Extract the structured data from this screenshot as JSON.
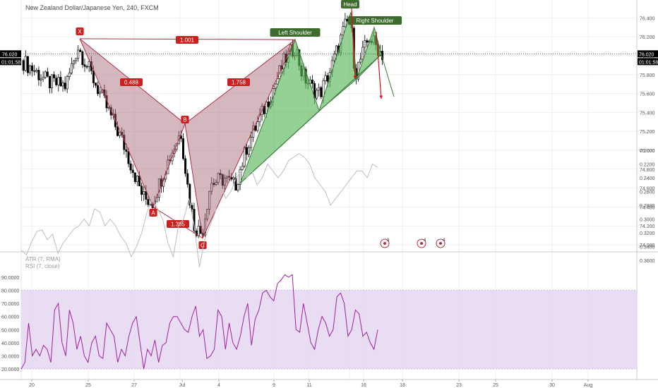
{
  "header": {
    "title": "New Zealand Dollar/Japanese Yen, 240, FXCM"
  },
  "price_panel": {
    "current_price": "76.020",
    "countdown": "01:01:58",
    "y_ticks": [
      "76.400",
      "76.200",
      "76.000",
      "75.800",
      "75.600",
      "75.400",
      "75.200",
      "75.000",
      "74.800",
      "74.600",
      "74.400",
      "74.200",
      "74.000"
    ]
  },
  "indicator_panel": {
    "atr_label": "ATR (7, RMA)",
    "rsi_label": "RSI (7, close)",
    "left_ticks": [
      "90.0000",
      "80.0000",
      "70.0000",
      "60.0000",
      "50.0000",
      "40.0000",
      "30.0000",
      "20.0000"
    ],
    "right_ticks": [
      "0.3600",
      "0.3400",
      "0.3200",
      "0.3000",
      "0.2800",
      "0.2600",
      "0.2400",
      "0.2200",
      "0.2000"
    ]
  },
  "time_axis": {
    "labels": [
      "20",
      "25",
      "27",
      "Jul",
      "4",
      "9",
      "11",
      "Head",
      "16",
      "18",
      "23",
      "25",
      "30",
      "Aug"
    ]
  },
  "colors": {
    "up_candle": "#ffffff",
    "down_candle": "#000000",
    "bat_fill": "#a06070",
    "hs_fill": "#5cb85c",
    "hs_line": "#3a7a3a",
    "label_red": "#cc1f1f",
    "label_green": "#3d6b2d",
    "rsi_line": "#a020a0",
    "atr_line": "#bdbdbd",
    "rsi_band": "#e5d9f2"
  },
  "chart_data": {
    "type": "candlestick",
    "title": "New Zealand Dollar/Japanese Yen, 240, FXCM",
    "ylim": [
      73.98,
      76.5
    ],
    "harmonic_pattern": {
      "points": [
        {
          "label": "X",
          "price": 76.18
        },
        {
          "label": "A",
          "price": 74.4
        },
        {
          "label": "B",
          "price": 75.28
        },
        {
          "label": "C",
          "price": 74.07
        },
        {
          "label": "D",
          "price": 76.17
        }
      ],
      "ratios": [
        "1.001",
        "0.488",
        "1.758",
        "1.385"
      ]
    },
    "head_and_shoulders": {
      "labels": [
        "Left Shoulder",
        "Head",
        "Right Shoulder"
      ],
      "left_shoulder": 76.17,
      "head": 76.46,
      "right_shoulder": 76.3
    },
    "event_markers": [
      "3",
      "4",
      "4"
    ],
    "rsi": {
      "name": "RSI (7, close)",
      "band": [
        20,
        80
      ],
      "values": [
        20,
        25,
        55,
        30,
        35,
        30,
        38,
        35,
        25,
        65,
        70,
        40,
        30,
        65,
        55,
        35,
        45,
        30,
        25,
        40,
        45,
        30,
        28,
        55,
        50,
        45,
        25,
        35,
        30,
        45,
        55,
        60,
        40,
        20,
        35,
        30,
        42,
        25,
        38,
        40,
        55,
        60,
        60,
        55,
        50,
        48,
        60,
        68,
        45,
        50,
        28,
        30,
        35,
        65,
        60,
        35,
        55,
        40,
        35,
        45,
        60,
        70,
        38,
        58,
        65,
        78,
        80,
        75,
        72,
        85,
        88,
        92,
        90,
        92,
        50,
        48,
        70,
        55,
        40,
        35,
        50,
        60,
        55,
        45,
        50,
        75,
        78,
        70,
        45,
        50,
        65,
        62,
        45,
        48,
        40,
        35,
        50
      ]
    },
    "atr": {
      "name": "ATR (7, RMA)",
      "values": [
        0.345,
        0.352,
        0.333,
        0.318,
        0.316,
        0.33,
        0.322,
        0.35,
        0.335,
        0.325,
        0.315,
        0.31,
        0.3,
        0.31,
        0.285,
        0.29,
        0.31,
        0.3,
        0.31,
        0.325,
        0.335,
        0.355,
        0.34,
        0.32,
        0.29,
        0.27,
        0.285,
        0.3,
        0.335,
        0.355,
        0.31,
        0.3,
        0.27,
        0.31,
        0.37,
        0.33,
        0.31,
        0.29,
        0.25,
        0.27,
        0.26,
        0.24,
        0.23,
        0.24,
        0.23,
        0.25,
        0.24,
        0.22,
        0.23,
        0.24,
        0.23,
        0.215,
        0.21,
        0.205,
        0.21,
        0.22,
        0.24,
        0.25,
        0.26,
        0.28,
        0.27,
        0.26,
        0.25,
        0.24,
        0.23,
        0.23,
        0.24,
        0.22,
        0.225
      ]
    }
  }
}
